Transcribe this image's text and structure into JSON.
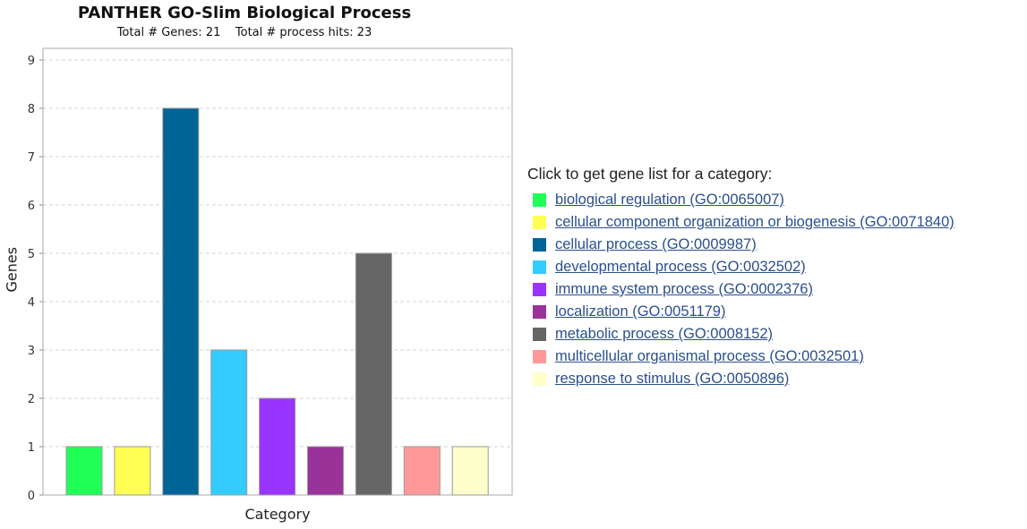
{
  "chart_data": {
    "type": "bar",
    "title": "PANTHER GO-Slim Biological Process",
    "subtitle": "Total # Genes: 21    Total # process hits: 23",
    "xlabel": "Category",
    "ylabel": "Genes",
    "ylim": [
      0,
      9
    ],
    "yticks": [
      "0",
      "1",
      "2",
      "3",
      "4",
      "5",
      "6",
      "7",
      "8",
      "9"
    ],
    "grid": true,
    "legend_placement": "right",
    "categories": [
      "biological regulation (GO:0065007)",
      "cellular component organization or biogenesis (GO:0071840)",
      "cellular process (GO:0009987)",
      "developmental process (GO:0032502)",
      "immune system process (GO:0002376)",
      "localization (GO:0051179)",
      "metabolic process (GO:0008152)",
      "multicellular organismal process (GO:0032501)",
      "response to stimulus (GO:0050896)"
    ],
    "values": [
      1,
      1,
      8,
      3,
      2,
      1,
      5,
      1,
      1
    ],
    "colors": [
      "#1fff55",
      "#ffff55",
      "#006496",
      "#33ccff",
      "#9933ff",
      "#993399",
      "#666666",
      "#ff9999",
      "#ffffcc"
    ]
  },
  "legend": {
    "heading": "Click to get gene list for a category:",
    "items": [
      {
        "label": "biological regulation (GO:0065007)",
        "color": "#1fff55"
      },
      {
        "label": "cellular component organization or biogenesis (GO:0071840)",
        "color": "#ffff55"
      },
      {
        "label": "cellular process (GO:0009987)",
        "color": "#006496"
      },
      {
        "label": "developmental process (GO:0032502)",
        "color": "#33ccff"
      },
      {
        "label": "immune system process (GO:0002376)",
        "color": "#9933ff"
      },
      {
        "label": "localization (GO:0051179)",
        "color": "#993399"
      },
      {
        "label": "metabolic process (GO:0008152)",
        "color": "#666666"
      },
      {
        "label": "multicellular organismal process (GO:0032501)",
        "color": "#ff9999"
      },
      {
        "label": "response to stimulus (GO:0050896)",
        "color": "#ffffcc"
      }
    ]
  }
}
